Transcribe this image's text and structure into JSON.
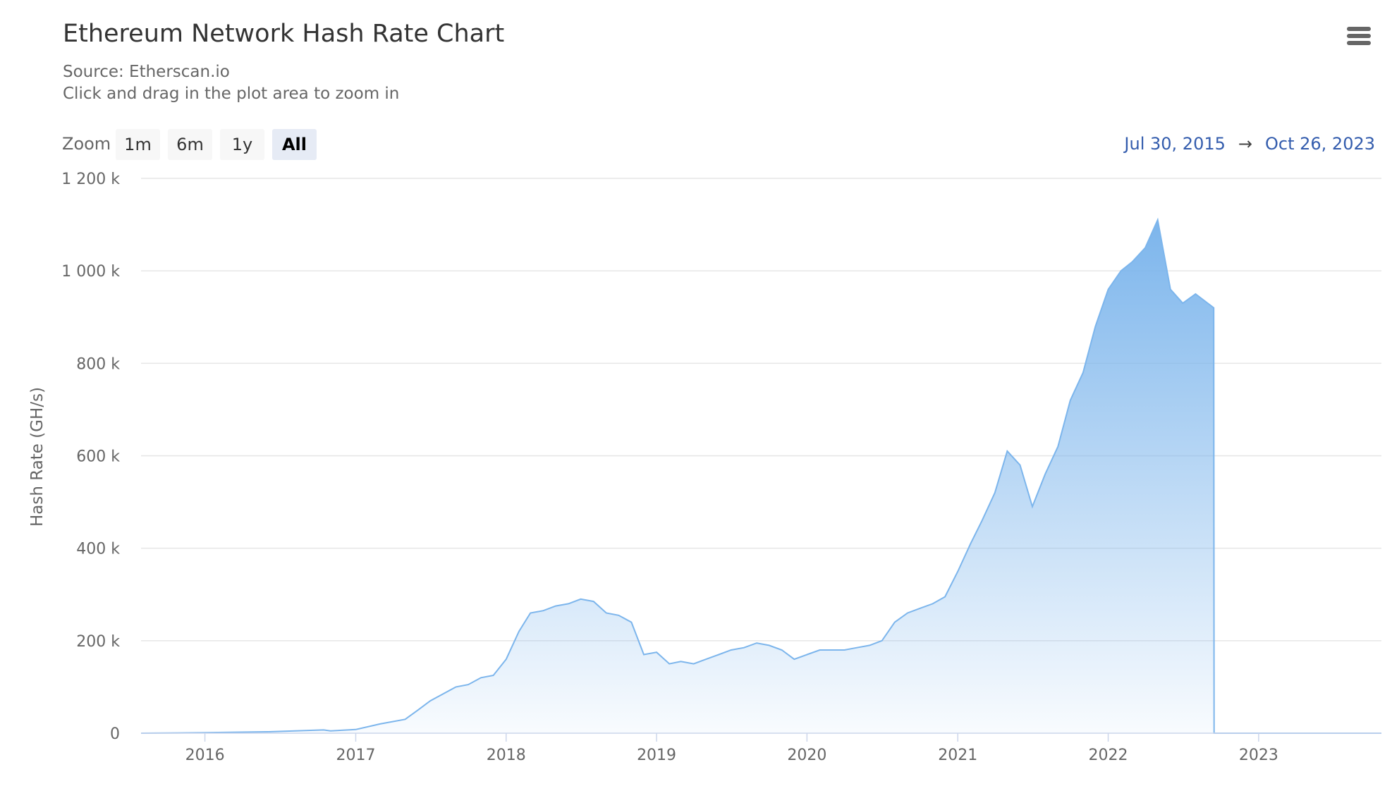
{
  "header": {
    "title": "Ethereum Network Hash Rate Chart",
    "source": "Source: Etherscan.io",
    "hint": "Click and drag in the plot area to zoom in"
  },
  "range_selector": {
    "label": "Zoom",
    "buttons": [
      {
        "label": "1m",
        "selected": false
      },
      {
        "label": "6m",
        "selected": false
      },
      {
        "label": "1y",
        "selected": false
      },
      {
        "label": "All",
        "selected": true
      }
    ],
    "from": "Jul 30, 2015",
    "arrow": "→",
    "to": "Oct 26, 2023"
  },
  "menu": {
    "icon": "hamburger-menu-icon"
  },
  "colors": {
    "series": "#7cb5ec",
    "range_text": "#335cad",
    "grid": "#e6e6e6",
    "axis": "#ccd6eb"
  },
  "chart_data": {
    "type": "area",
    "title": "Ethereum Network Hash Rate Chart",
    "subtitle": "Source: Etherscan.io",
    "xlabel": "",
    "ylabel": "Hash Rate (GH/s)",
    "xlim": [
      "2015-07-30",
      "2023-10-26"
    ],
    "ylim": [
      0,
      1200000
    ],
    "yticks": [
      0,
      200000,
      400000,
      600000,
      800000,
      1000000,
      1200000
    ],
    "ytick_labels": [
      "0",
      "200 k",
      "400 k",
      "600 k",
      "800 k",
      "1 000 k",
      "1 200 k"
    ],
    "xtick_labels": [
      "2016",
      "2017",
      "2018",
      "2019",
      "2020",
      "2021",
      "2022",
      "2023"
    ],
    "grid": true,
    "legend": "none",
    "series": [
      {
        "x": [
          "2015-07-30",
          "2016-01-01",
          "2016-06-01",
          "2016-10-15",
          "2016-11-01",
          "2017-01-01",
          "2017-03-01",
          "2017-05-01",
          "2017-06-01",
          "2017-07-01",
          "2017-08-01",
          "2017-09-01",
          "2017-10-01",
          "2017-11-01",
          "2017-12-01",
          "2018-01-01",
          "2018-02-01",
          "2018-03-01",
          "2018-04-01",
          "2018-05-01",
          "2018-06-01",
          "2018-07-01",
          "2018-08-01",
          "2018-09-01",
          "2018-10-01",
          "2018-11-01",
          "2018-12-01",
          "2019-01-01",
          "2019-02-01",
          "2019-03-01",
          "2019-04-01",
          "2019-05-01",
          "2019-06-01",
          "2019-07-01",
          "2019-08-01",
          "2019-09-01",
          "2019-10-01",
          "2019-11-01",
          "2019-12-01",
          "2020-01-01",
          "2020-02-01",
          "2020-03-01",
          "2020-04-01",
          "2020-05-01",
          "2020-06-01",
          "2020-07-01",
          "2020-08-01",
          "2020-09-01",
          "2020-10-01",
          "2020-11-01",
          "2020-12-01",
          "2021-01-01",
          "2021-02-01",
          "2021-03-01",
          "2021-04-01",
          "2021-05-01",
          "2021-06-01",
          "2021-07-01",
          "2021-08-01",
          "2021-09-01",
          "2021-10-01",
          "2021-11-01",
          "2021-12-01",
          "2022-01-01",
          "2022-02-01",
          "2022-03-01",
          "2022-04-01",
          "2022-05-01",
          "2022-06-01",
          "2022-07-01",
          "2022-08-01",
          "2022-09-14",
          "2022-09-15",
          "2023-10-26"
        ],
        "values": [
          0,
          1000,
          3000,
          7000,
          5000,
          8000,
          20000,
          30000,
          50000,
          70000,
          85000,
          100000,
          105000,
          120000,
          125000,
          160000,
          220000,
          260000,
          265000,
          275000,
          280000,
          290000,
          285000,
          260000,
          255000,
          240000,
          170000,
          175000,
          150000,
          155000,
          150000,
          160000,
          170000,
          180000,
          185000,
          195000,
          190000,
          180000,
          160000,
          170000,
          180000,
          180000,
          180000,
          185000,
          190000,
          200000,
          240000,
          260000,
          270000,
          280000,
          295000,
          350000,
          410000,
          460000,
          520000,
          610000,
          580000,
          490000,
          560000,
          620000,
          720000,
          780000,
          880000,
          960000,
          1000000,
          1020000,
          1050000,
          1110000,
          960000,
          930000,
          950000,
          920000,
          0,
          0
        ]
      }
    ]
  }
}
